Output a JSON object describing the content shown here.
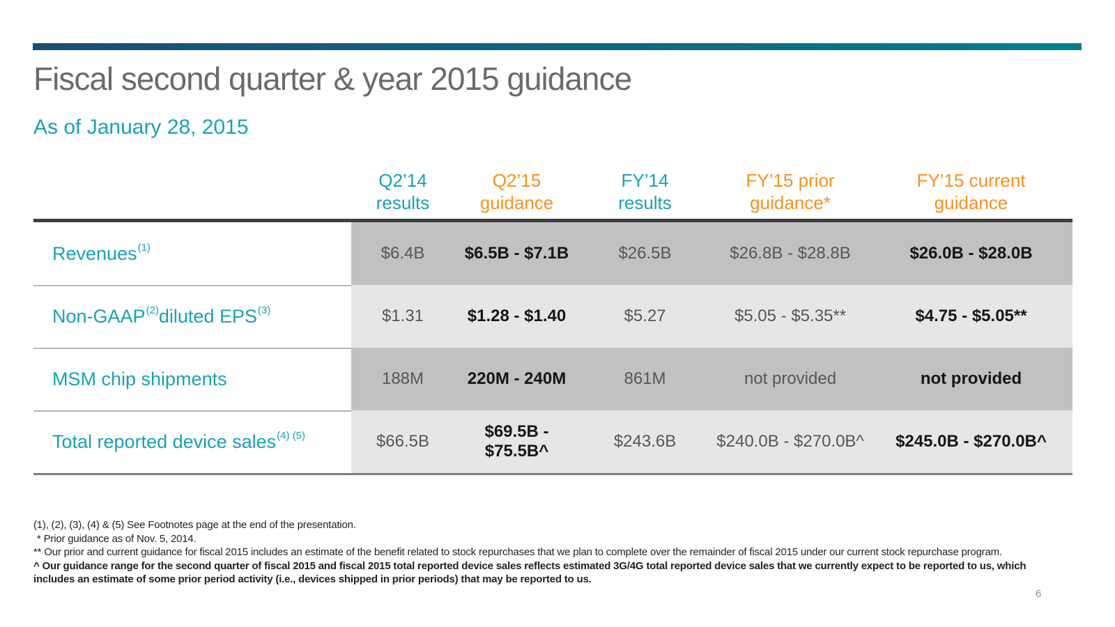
{
  "slide": {
    "title": "Fiscal second quarter & year 2015 guidance",
    "subtitle": "As of January 28, 2015",
    "page_number": "6"
  },
  "colors": {
    "navy": "#1b4e74",
    "bar-teal": "#00808d",
    "teal": "#17a2b6",
    "orange": "#f6921e",
    "title-gray": "#696a6d",
    "row-dark": "#c1c1c2",
    "row-light": "#e6e6e7",
    "value-gray": "#55565a",
    "value-black": "#161616",
    "rule-dark": "#3e3e40",
    "rule-mid": "#7c7d7f",
    "label-sep": "#b5b6b7",
    "footnote": "#231f20",
    "page-num": "#8e8f91"
  },
  "table": {
    "columns": [
      {
        "line1": "Q2’14",
        "line2": "results",
        "style": "results"
      },
      {
        "line1": "Q2’15",
        "line2": "guidance",
        "style": "guidance"
      },
      {
        "line1": "FY’14",
        "line2": "results",
        "style": "results"
      },
      {
        "line1": "FY’15 prior",
        "line2": "guidance*",
        "style": "guidance"
      },
      {
        "line1": "FY’15 current",
        "line2": "guidance",
        "style": "guidance"
      }
    ],
    "bold_value_columns": [
      1,
      4
    ],
    "rows": [
      {
        "label": [
          {
            "t": "Revenues"
          },
          {
            "s": "(1)"
          }
        ],
        "values": [
          "$6.4B",
          "$6.5B - $7.1B",
          "$26.5B",
          "$26.8B - $28.8B",
          "$26.0B - $28.0B"
        ]
      },
      {
        "label": [
          {
            "t": "Non-GAAP"
          },
          {
            "s": "(2)"
          },
          {
            "t": " diluted EPS"
          },
          {
            "s": "(3)"
          }
        ],
        "values": [
          "$1.31",
          "$1.28 - $1.40",
          "$5.27",
          "$5.05 - $5.35**",
          "$4.75 - $5.05**"
        ]
      },
      {
        "label": [
          {
            "t": "MSM chip shipments"
          }
        ],
        "values": [
          "188M",
          "220M - 240M",
          "861M",
          "not provided",
          "not provided"
        ]
      },
      {
        "label": [
          {
            "t": "Total reported device sales"
          },
          {
            "s": "(4) (5)"
          }
        ],
        "values": [
          "$66.5B",
          "$69.5B - $75.5B^",
          "$243.6B",
          "$240.0B - $270.0B^",
          "$245.0B - $270.0B^"
        ]
      }
    ]
  },
  "footnotes": [
    {
      "text": "(1), (2), (3), (4) & (5) See Footnotes page at the end of the presentation.",
      "bold": false,
      "indent": false
    },
    {
      "text": "* Prior guidance as of Nov. 5, 2014.",
      "bold": false,
      "indent": true
    },
    {
      "text": "** Our prior and current guidance for fiscal 2015 includes an estimate of the benefit related to stock repurchases that we plan to complete over the remainder of fiscal 2015 under our current stock repurchase program.",
      "bold": false,
      "indent": false
    },
    {
      "text": "^ Our guidance range for the second quarter of fiscal 2015 and fiscal 2015 total reported device sales reflects estimated 3G/4G total reported device sales that we currently expect to be reported to us, which includes an estimate of some prior period activity (i.e., devices shipped in prior periods) that may be reported to us.",
      "bold": true,
      "indent": false
    }
  ]
}
